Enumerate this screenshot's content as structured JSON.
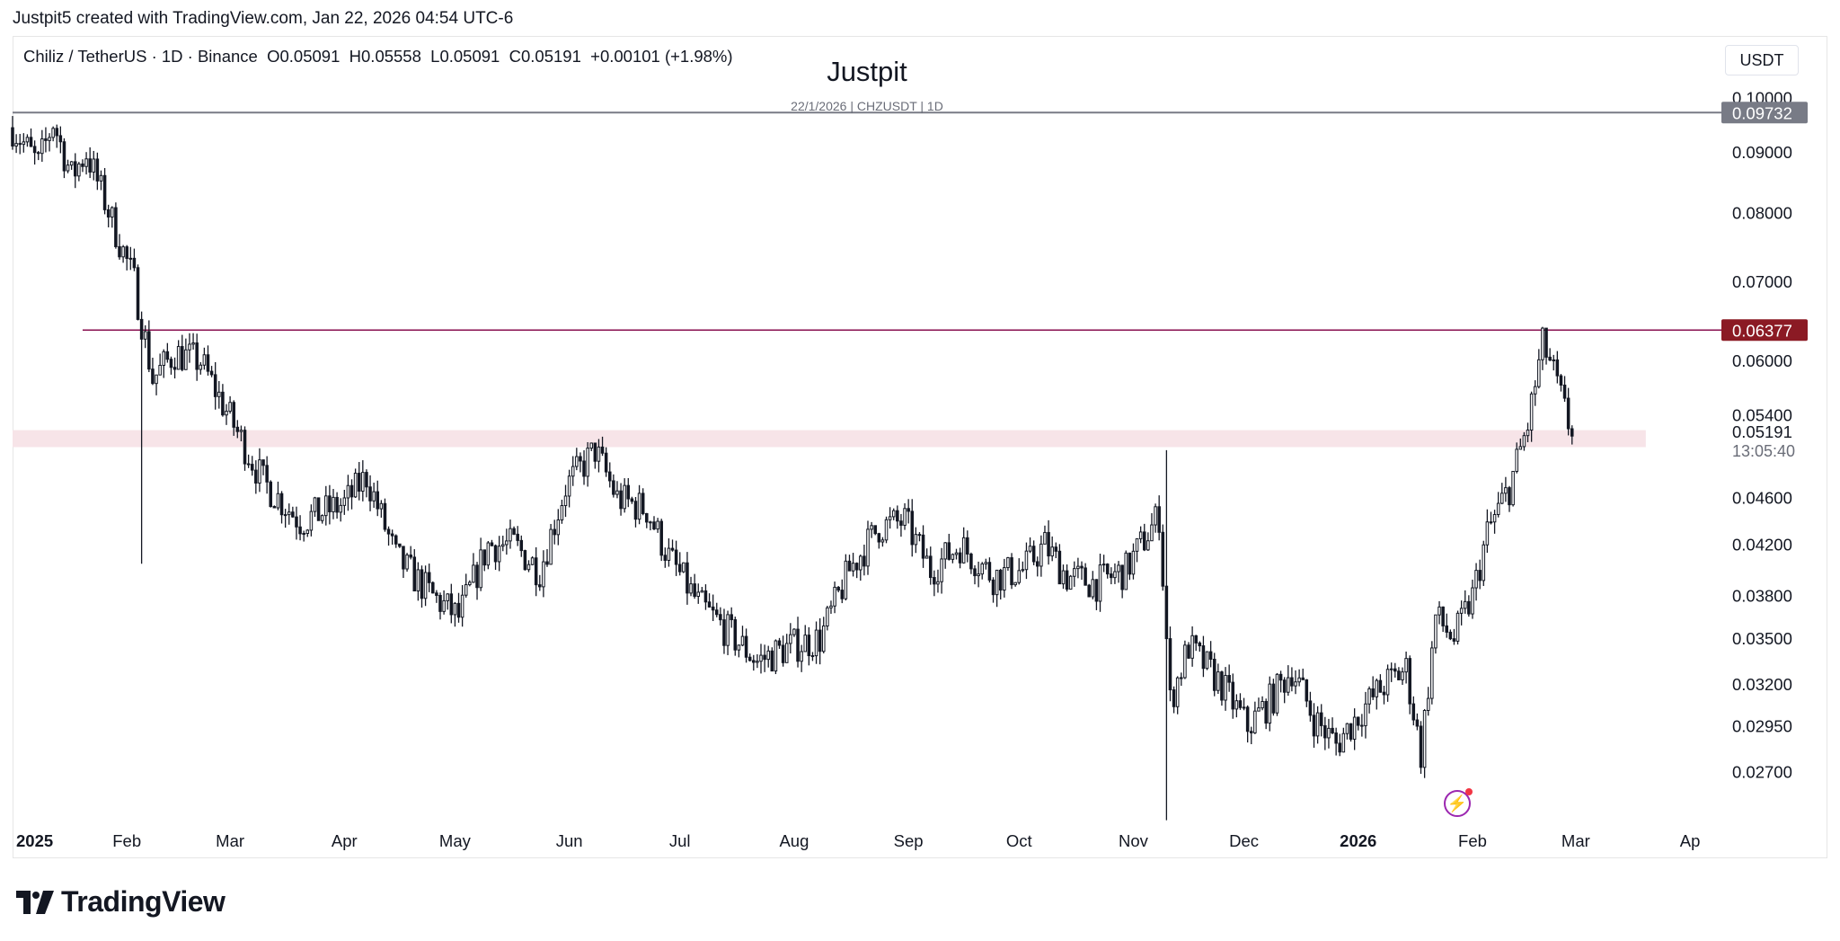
{
  "header": {
    "text": "Justpit5 created with TradingView.com, Jan 22, 2026 04:54 UTC-6"
  },
  "legend": {
    "symbol": "Chiliz / TetherUS · 1D · Binance",
    "open": "O0.05091",
    "high": "H0.05558",
    "low": "L0.05091",
    "close": "C0.05191",
    "change": "+0.00101 (+1.98%)"
  },
  "watermark": {
    "title": "Justpit",
    "subtitle": "22/1/2026 | CHZUSDT | 1D"
  },
  "currency": "USDT",
  "footer": {
    "brand": "TradingView"
  },
  "icons": {
    "alert": "lightning-alert-icon",
    "logo": "tradingview-logo-icon"
  },
  "colors": {
    "candle": "#131722",
    "resistance_line": "#880e4f",
    "resistance_label_bg": "#8b1a24",
    "top_line": "#787b86",
    "top_label_bg": "#787b86",
    "zone_fill": "#f7e4e8",
    "text": "#131722"
  },
  "chart_data": {
    "type": "candlestick",
    "scale": "log",
    "symbol": "CHZUSDT",
    "interval": "1D",
    "y_ticks": [
      "0.10000",
      "0.09000",
      "0.08000",
      "0.07000",
      "0.06000",
      "0.05400",
      "0.04600",
      "0.04200",
      "0.03800",
      "0.03500",
      "0.03200",
      "0.02950",
      "0.02700"
    ],
    "x_ticks": [
      "2025",
      "Feb",
      "Mar",
      "Apr",
      "May",
      "Jun",
      "Jul",
      "Aug",
      "Sep",
      "Oct",
      "Nov",
      "Dec",
      "2026",
      "Feb",
      "Mar",
      "Ap"
    ],
    "bold_x_ticks": [
      "2025",
      "2026"
    ],
    "price_labels": {
      "top_line": "0.09732",
      "resistance": "0.06377",
      "last_price": "0.05191",
      "countdown": "13:05:40"
    },
    "horizontal_lines": [
      {
        "name": "top-line",
        "price": 0.09732,
        "from_date": "2025-01-01"
      },
      {
        "name": "resistance-line",
        "price": 0.06377,
        "from_date": "2025-01-20"
      }
    ],
    "support_zone": {
      "low": 0.0508,
      "high": 0.0525,
      "from_date": "2025-01-01",
      "to_date": "2026-03-20"
    },
    "x_range": [
      "2025-01-01",
      "2026-04-10"
    ],
    "y_range": [
      0.0245,
      0.1035
    ],
    "close_anchors": [
      {
        "date": "2025-01-01",
        "close": 0.0945
      },
      {
        "date": "2025-01-08",
        "close": 0.088
      },
      {
        "date": "2025-01-12",
        "close": 0.0955
      },
      {
        "date": "2025-01-17",
        "close": 0.086
      },
      {
        "date": "2025-01-21",
        "close": 0.09
      },
      {
        "date": "2025-01-26",
        "close": 0.082
      },
      {
        "date": "2025-02-03",
        "close": 0.07
      },
      {
        "date": "2025-02-08",
        "close": 0.058
      },
      {
        "date": "2025-02-14",
        "close": 0.061
      },
      {
        "date": "2025-02-21",
        "close": 0.06
      },
      {
        "date": "2025-03-02",
        "close": 0.053
      },
      {
        "date": "2025-03-10",
        "close": 0.0475
      },
      {
        "date": "2025-03-20",
        "close": 0.044
      },
      {
        "date": "2025-04-01",
        "close": 0.0455
      },
      {
        "date": "2025-04-07",
        "close": 0.048
      },
      {
        "date": "2025-04-15",
        "close": 0.041
      },
      {
        "date": "2025-04-25",
        "close": 0.038
      },
      {
        "date": "2025-05-02",
        "close": 0.0365
      },
      {
        "date": "2025-05-10",
        "close": 0.042
      },
      {
        "date": "2025-05-17",
        "close": 0.042
      },
      {
        "date": "2025-05-24",
        "close": 0.04
      },
      {
        "date": "2025-05-31",
        "close": 0.047
      },
      {
        "date": "2025-06-08",
        "close": 0.0505
      },
      {
        "date": "2025-06-14",
        "close": 0.046
      },
      {
        "date": "2025-06-22",
        "close": 0.045
      },
      {
        "date": "2025-06-28",
        "close": 0.041
      },
      {
        "date": "2025-07-06",
        "close": 0.0375
      },
      {
        "date": "2025-07-14",
        "close": 0.0355
      },
      {
        "date": "2025-07-22",
        "close": 0.0335
      },
      {
        "date": "2025-07-31",
        "close": 0.0345
      },
      {
        "date": "2025-08-08",
        "close": 0.035
      },
      {
        "date": "2025-08-16",
        "close": 0.04
      },
      {
        "date": "2025-08-24",
        "close": 0.0435
      },
      {
        "date": "2025-08-31",
        "close": 0.044
      },
      {
        "date": "2025-09-07",
        "close": 0.04
      },
      {
        "date": "2025-09-15",
        "close": 0.042
      },
      {
        "date": "2025-09-24",
        "close": 0.0395
      },
      {
        "date": "2025-10-02",
        "close": 0.04
      },
      {
        "date": "2025-10-08",
        "close": 0.042
      },
      {
        "date": "2025-10-14",
        "close": 0.0395
      },
      {
        "date": "2025-10-22",
        "close": 0.039
      },
      {
        "date": "2025-10-30",
        "close": 0.04
      },
      {
        "date": "2025-11-02",
        "close": 0.0415
      },
      {
        "date": "2025-11-08",
        "close": 0.0445
      },
      {
        "date": "2025-11-11",
        "close": 0.031
      },
      {
        "date": "2025-11-16",
        "close": 0.0345
      },
      {
        "date": "2025-11-25",
        "close": 0.032
      },
      {
        "date": "2025-12-02",
        "close": 0.0295
      },
      {
        "date": "2025-12-08",
        "close": 0.031
      },
      {
        "date": "2025-12-14",
        "close": 0.033
      },
      {
        "date": "2025-12-20",
        "close": 0.03
      },
      {
        "date": "2025-12-26",
        "close": 0.0285
      },
      {
        "date": "2026-01-02",
        "close": 0.0305
      },
      {
        "date": "2026-01-08",
        "close": 0.032
      },
      {
        "date": "2026-01-14",
        "close": 0.033
      },
      {
        "date": "2026-01-18",
        "close": 0.028
      },
      {
        "date": "2026-01-22",
        "close": 0.0365
      },
      {
        "date": "2026-01-27",
        "close": 0.035
      },
      {
        "date": "2026-02-01",
        "close": 0.038
      },
      {
        "date": "2026-02-05",
        "close": 0.043
      },
      {
        "date": "2026-02-11",
        "close": 0.047
      },
      {
        "date": "2026-02-16",
        "close": 0.053
      },
      {
        "date": "2026-02-20",
        "close": 0.062
      },
      {
        "date": "2026-02-22",
        "close": 0.06
      },
      {
        "date": "2026-02-26",
        "close": 0.0545
      },
      {
        "date": "2026-02-28",
        "close": 0.0519
      }
    ],
    "wick_spikes": [
      {
        "date": "2025-02-05",
        "low": 0.0405
      },
      {
        "date": "2025-11-10",
        "low": 0.0246,
        "high": 0.0505
      },
      {
        "date": "2026-02-21",
        "high": 0.0638
      }
    ]
  }
}
